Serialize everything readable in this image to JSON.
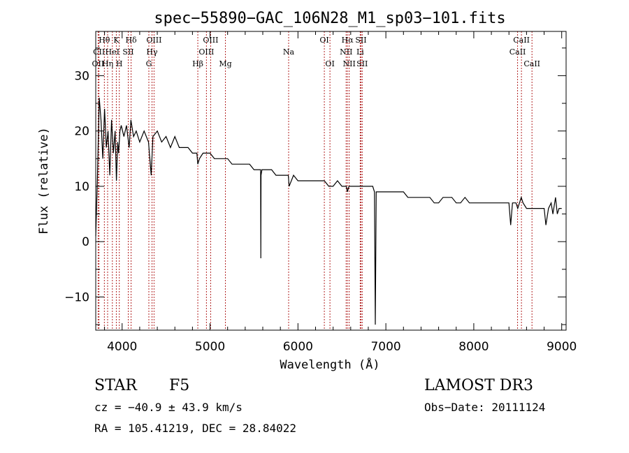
{
  "chart_data": {
    "type": "line",
    "title": "spec−55890−GAC_106N28_M1_sp03−101.fits",
    "xlabel": "Wavelength (Å)",
    "ylabel": "Flux (relative)",
    "xlim": [
      3700,
      9050
    ],
    "ylim": [
      -16,
      38
    ],
    "x_ticks": [
      4000,
      5000,
      6000,
      7000,
      8000,
      9000
    ],
    "x_tick_labels": [
      "4000",
      "5000",
      "6000",
      "7000",
      "8000",
      "9000"
    ],
    "y_ticks": [
      -10,
      0,
      10,
      20,
      30
    ],
    "y_tick_labels": [
      "−10",
      "0",
      "10",
      "20",
      "30"
    ],
    "series": [
      {
        "name": "flux",
        "color": "#000000",
        "x": [
          3700,
          3720,
          3740,
          3760,
          3780,
          3800,
          3820,
          3840,
          3860,
          3880,
          3900,
          3920,
          3935,
          3950,
          3960,
          3975,
          3990,
          4020,
          4050,
          4080,
          4100,
          4130,
          4160,
          4200,
          4250,
          4300,
          4330,
          4350,
          4400,
          4450,
          4500,
          4550,
          4600,
          4650,
          4700,
          4750,
          4800,
          4850,
          4861,
          4880,
          4920,
          4960,
          5000,
          5050,
          5100,
          5150,
          5200,
          5250,
          5300,
          5350,
          5400,
          5450,
          5500,
          5550,
          5575,
          5578,
          5580,
          5590,
          5620,
          5700,
          5750,
          5800,
          5850,
          5890,
          5900,
          5950,
          6000,
          6050,
          6100,
          6150,
          6200,
          6250,
          6300,
          6350,
          6400,
          6450,
          6500,
          6550,
          6563,
          6580,
          6600,
          6650,
          6700,
          6750,
          6800,
          6850,
          6870,
          6880,
          6890,
          6900,
          6950,
          7000,
          7050,
          7100,
          7150,
          7200,
          7250,
          7300,
          7350,
          7400,
          7450,
          7500,
          7550,
          7600,
          7650,
          7700,
          7750,
          7800,
          7850,
          7900,
          7950,
          8000,
          8050,
          8100,
          8150,
          8200,
          8250,
          8300,
          8350,
          8400,
          8420,
          8440,
          8480,
          8500,
          8540,
          8560,
          8600,
          8640,
          8662,
          8700,
          8750,
          8800,
          8820,
          8850,
          8880,
          8900,
          8930,
          8950,
          8970,
          9000
        ],
        "y": [
          1,
          12,
          26,
          22,
          15,
          24,
          17,
          20,
          12,
          22,
          16,
          20,
          11,
          18,
          16,
          20,
          21,
          19,
          21,
          17,
          22,
          19,
          20,
          18,
          20,
          18,
          12,
          19,
          20,
          18,
          19,
          17,
          19,
          17,
          17,
          17,
          16,
          16,
          14,
          15,
          16,
          16,
          16,
          15,
          15,
          15,
          15,
          14,
          14,
          14,
          14,
          14,
          13,
          13,
          13,
          -3,
          12,
          13,
          13,
          13,
          12,
          12,
          12,
          12,
          10,
          12,
          11,
          11,
          11,
          11,
          11,
          11,
          11,
          10,
          10,
          11,
          10,
          10,
          9,
          10,
          10,
          10,
          10,
          10,
          10,
          10,
          9,
          -15,
          9,
          9,
          9,
          9,
          9,
          9,
          9,
          9,
          8,
          8,
          8,
          8,
          8,
          8,
          7,
          7,
          8,
          8,
          8,
          7,
          7,
          8,
          7,
          7,
          7,
          7,
          7,
          7,
          7,
          7,
          7,
          7,
          3,
          7,
          7,
          6,
          8,
          7,
          6,
          6,
          6,
          6,
          6,
          6,
          3,
          6,
          7,
          5,
          8,
          5,
          6,
          6
        ]
      }
    ],
    "lines": [
      {
        "label": "Hθ",
        "wavelength": 3798,
        "row": 1
      },
      {
        "label": "CII",
        "wavelength": 3737,
        "row": 2
      },
      {
        "label": "OII",
        "wavelength": 3727,
        "row": 3
      },
      {
        "label": "K",
        "wavelength": 3934,
        "row": 1
      },
      {
        "label": "Hη",
        "wavelength": 3835,
        "row": 3
      },
      {
        "label": "HeI",
        "wavelength": 3889,
        "row": 2
      },
      {
        "label": "H",
        "wavelength": 3968,
        "row": 3
      },
      {
        "label": "SII",
        "wavelength": 4070,
        "row": 2
      },
      {
        "label": "Hδ",
        "wavelength": 4102,
        "row": 1
      },
      {
        "label": "OIII",
        "wavelength": 4363,
        "row": 1
      },
      {
        "label": "Hγ",
        "wavelength": 4340,
        "row": 2
      },
      {
        "label": "G",
        "wavelength": 4304,
        "row": 3
      },
      {
        "label": "OIII",
        "wavelength": 5007,
        "row": 1
      },
      {
        "label": "OIII",
        "wavelength": 4959,
        "row": 2
      },
      {
        "label": "Hβ",
        "wavelength": 4861,
        "row": 3
      },
      {
        "label": "Mg",
        "wavelength": 5175,
        "row": 3
      },
      {
        "label": "Na",
        "wavelength": 5894,
        "row": 2
      },
      {
        "label": "OI",
        "wavelength": 6300,
        "row": 1
      },
      {
        "label": "OI",
        "wavelength": 6364,
        "row": 3
      },
      {
        "label": "Hα",
        "wavelength": 6563,
        "row": 1
      },
      {
        "label": "SII",
        "wavelength": 6717,
        "row": 1
      },
      {
        "label": "NII",
        "wavelength": 6548,
        "row": 2
      },
      {
        "label": "Li",
        "wavelength": 6708,
        "row": 2
      },
      {
        "label": "NII",
        "wavelength": 6583,
        "row": 3
      },
      {
        "label": "SII",
        "wavelength": 6731,
        "row": 3
      },
      {
        "label": "CaII",
        "wavelength": 8542,
        "row": 1
      },
      {
        "label": "CaII",
        "wavelength": 8498,
        "row": 2
      },
      {
        "label": "CaII",
        "wavelength": 8662,
        "row": 3
      }
    ]
  },
  "info": {
    "object_class": "STAR",
    "subclass": "F5",
    "survey": "LAMOST DR3",
    "cz": "cz = −40.9 ± 43.9 km/s",
    "obs_date": "Obs−Date: 20111124",
    "coords": "RA = 105.41219, DEC =  28.84022"
  },
  "colors": {
    "spectrum": "#000000",
    "line_marker": "#b22222",
    "axis": "#000000",
    "background": "#ffffff"
  }
}
